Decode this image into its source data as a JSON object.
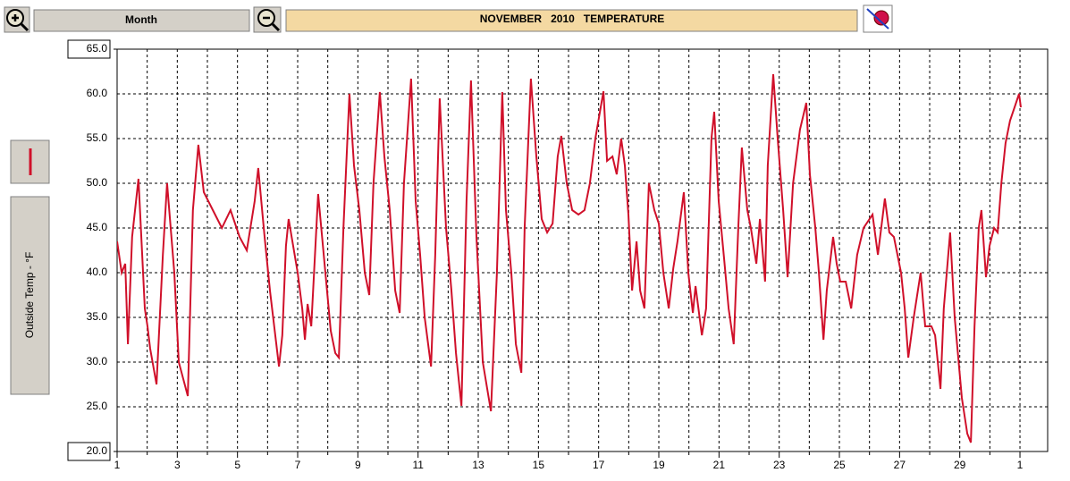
{
  "toolbar": {
    "period": "Month"
  },
  "chart_data": {
    "type": "line",
    "title": "NOVEMBER   2010   TEMPERATURE",
    "ylabel": "Outside Temp - °F",
    "series": [
      {
        "name": "Outside Temp - °F",
        "color": "#d0102a",
        "x": [
          1.0,
          1.15,
          1.27,
          1.36,
          1.5,
          1.71,
          1.92,
          2.01,
          2.1,
          2.31,
          2.52,
          2.66,
          2.9,
          3.05,
          3.35,
          3.52,
          3.7,
          3.88,
          4.18,
          4.48,
          4.77,
          5.07,
          5.31,
          5.57,
          5.69,
          5.9,
          6.08,
          6.38,
          6.49,
          6.61,
          6.7,
          7.0,
          7.15,
          7.24,
          7.33,
          7.45,
          7.68,
          7.92,
          8.1,
          8.25,
          8.37,
          8.52,
          8.72,
          8.87,
          9.05,
          9.23,
          9.38,
          9.52,
          9.73,
          9.88,
          10.06,
          10.24,
          10.39,
          10.53,
          10.77,
          10.92,
          11.07,
          11.22,
          11.43,
          11.57,
          11.72,
          11.93,
          12.11,
          12.26,
          12.44,
          12.61,
          12.76,
          12.94,
          13.15,
          13.42,
          13.62,
          13.8,
          13.92,
          14.1,
          14.25,
          14.43,
          14.54,
          14.75,
          14.93,
          15.11,
          15.29,
          15.47,
          15.64,
          15.76,
          15.94,
          16.12,
          16.33,
          16.53,
          16.71,
          16.89,
          17.16,
          17.28,
          17.46,
          17.6,
          17.75,
          17.87,
          17.99,
          18.11,
          18.26,
          18.38,
          18.52,
          18.67,
          18.85,
          19.0,
          19.15,
          19.33,
          19.48,
          19.62,
          19.83,
          19.98,
          20.13,
          20.22,
          20.43,
          20.57,
          20.75,
          20.84,
          20.99,
          21.17,
          21.32,
          21.49,
          21.64,
          21.76,
          21.94,
          22.06,
          22.24,
          22.36,
          22.53,
          22.62,
          22.8,
          22.95,
          23.13,
          23.28,
          23.46,
          23.69,
          23.9,
          24.02,
          24.2,
          24.32,
          24.47,
          24.58,
          24.79,
          24.91,
          25.03,
          25.21,
          25.39,
          25.59,
          25.8,
          26.1,
          26.28,
          26.51,
          26.66,
          26.81,
          27.05,
          27.17,
          27.29,
          27.47,
          27.7,
          27.85,
          28.06,
          28.18,
          28.36,
          28.47,
          28.68,
          28.83,
          29.07,
          29.25,
          29.37,
          29.49,
          29.63,
          29.72,
          29.87,
          29.99,
          30.14,
          30.26,
          30.38,
          30.52,
          30.67,
          30.82,
          30.97,
          31.03
        ],
        "values": [
          43.5,
          40,
          41,
          32,
          44,
          50.5,
          36,
          34,
          31.5,
          27.5,
          42,
          50,
          40,
          30,
          26.2,
          47,
          54.3,
          49,
          47,
          45,
          47,
          44,
          42.5,
          48,
          51.7,
          44,
          38,
          29.5,
          33,
          43,
          46,
          40,
          36,
          32.5,
          36.5,
          34,
          48.8,
          40,
          33.5,
          31,
          30.5,
          45,
          60,
          52,
          47,
          40,
          37.5,
          50,
          60.2,
          53,
          47,
          38,
          35.5,
          50,
          61.7,
          48,
          42,
          35,
          29.5,
          42,
          59.5,
          45,
          38,
          31,
          25.1,
          48,
          61.5,
          44,
          30,
          24.5,
          40,
          60.2,
          47,
          40,
          32,
          28.8,
          45,
          61.7,
          53,
          46,
          44.5,
          45.5,
          53,
          55.3,
          50,
          47,
          46.5,
          47,
          50,
          55,
          60.3,
          52.5,
          53,
          51,
          55,
          52,
          46.5,
          38,
          43.5,
          38,
          36,
          50,
          47,
          45.5,
          40,
          36,
          40.5,
          43.5,
          49,
          40,
          35.5,
          38.5,
          33,
          36,
          55,
          58,
          48,
          41.5,
          36,
          32,
          45,
          54,
          47,
          45,
          41,
          46,
          39,
          52,
          62.2,
          55,
          47,
          39.5,
          50,
          56,
          59,
          51,
          45,
          40,
          32.5,
          38,
          44,
          41,
          39,
          39,
          36,
          42,
          45,
          46.5,
          42,
          48.3,
          44.5,
          44,
          40,
          36,
          30.5,
          35,
          40,
          34,
          34,
          33,
          27,
          36,
          44.5,
          35,
          26,
          22,
          21,
          34,
          45,
          47,
          39.5,
          43,
          45,
          44.5,
          50,
          54.5,
          57,
          58.5,
          60,
          58.5
        ]
      }
    ],
    "xlim": [
      1,
      31.92
    ],
    "xticks": [
      1,
      3,
      5,
      7,
      9,
      11,
      13,
      15,
      17,
      19,
      21,
      23,
      25,
      27,
      29,
      {
        "value": 31,
        "label": "1"
      }
    ],
    "xminor_ticks": [
      2,
      4,
      6,
      8,
      10,
      12,
      14,
      16,
      18,
      20,
      22,
      24,
      26,
      28,
      30
    ],
    "ylim": [
      20,
      65
    ],
    "yticks": [
      {
        "value": 20,
        "label": "20.0"
      },
      {
        "value": 25,
        "label": "25.0"
      },
      {
        "value": 30,
        "label": "30.0"
      },
      {
        "value": 35,
        "label": "35.0"
      },
      {
        "value": 40,
        "label": "40.0"
      },
      {
        "value": 45,
        "label": "45.0"
      },
      {
        "value": 50,
        "label": "50.0"
      },
      {
        "value": 55,
        "label": "55.0"
      },
      {
        "value": 60,
        "label": "60.0"
      },
      {
        "value": 65,
        "label": "65.0"
      }
    ],
    "grid": true
  }
}
